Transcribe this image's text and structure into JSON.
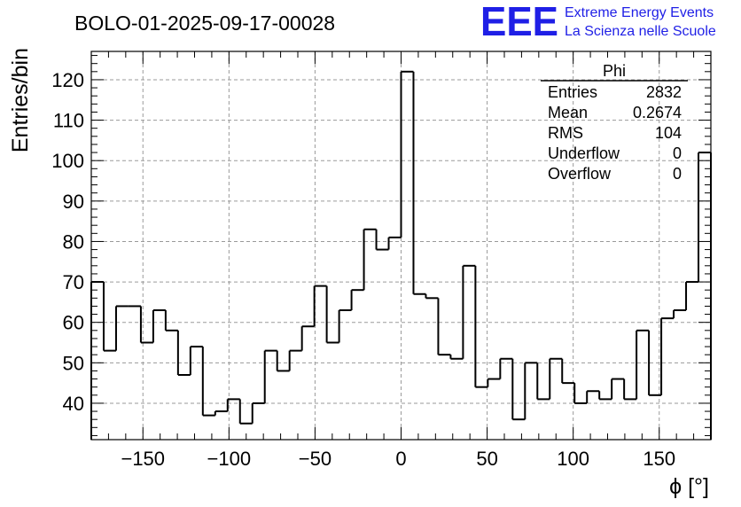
{
  "colors": {
    "logo": "#1f1fe6",
    "grid": "#9a9a9a",
    "line": "#000000"
  },
  "logo": {
    "mark": "EEE",
    "line1": "Extreme Energy Events",
    "line2": "La Scienza nelle Scuole"
  },
  "chart_data": {
    "type": "histogram",
    "title": "BOLO-01-2025-09-17-00028",
    "xlabel": "ϕ [°]",
    "ylabel": "Entries/bin",
    "xlim": [
      -180,
      180
    ],
    "ylim": [
      31,
      127
    ],
    "grid": true,
    "x_ticks": [
      -150,
      -100,
      -50,
      0,
      50,
      100,
      150
    ],
    "x_tick_labels": [
      "−150",
      "−100",
      "−50",
      "0",
      "50",
      "100",
      "150"
    ],
    "y_ticks": [
      40,
      50,
      60,
      70,
      80,
      90,
      100,
      110,
      120
    ],
    "y_tick_labels": [
      "40",
      "50",
      "60",
      "70",
      "80",
      "90",
      "100",
      "110",
      "120"
    ],
    "bin_edges_start": -180,
    "bin_width": 7.2,
    "values": [
      70,
      53,
      64,
      64,
      55,
      63,
      58,
      47,
      54,
      37,
      38,
      41,
      35,
      40,
      53,
      48,
      53,
      59,
      69,
      55,
      63,
      68,
      83,
      78,
      81,
      122,
      67,
      66,
      52,
      51,
      74,
      44,
      46,
      51,
      36,
      50,
      41,
      51,
      45,
      40,
      43,
      41,
      46,
      41,
      58,
      42,
      61,
      63,
      70,
      102
    ],
    "stats": {
      "name": "Phi",
      "rows": [
        {
          "label": "Entries",
          "value": "2832"
        },
        {
          "label": "Mean",
          "value": "0.2674"
        },
        {
          "label": "RMS",
          "value": "104"
        },
        {
          "label": "Underflow",
          "value": "0"
        },
        {
          "label": "Overflow",
          "value": "0"
        }
      ]
    }
  }
}
